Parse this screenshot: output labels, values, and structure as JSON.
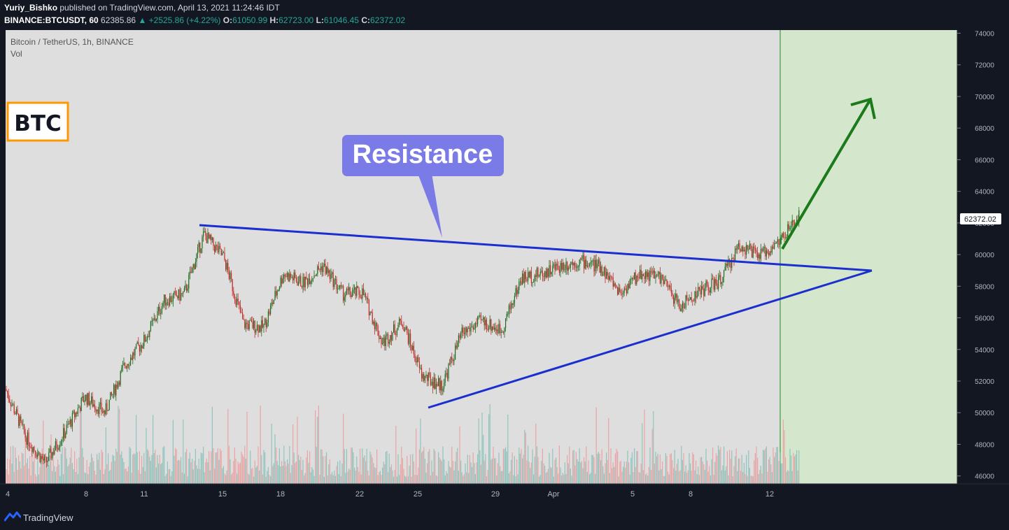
{
  "header": {
    "author": "Yuriy_Bishko",
    "published": "published on TradingView.com, April 13, 2021 11:24:46 IDT",
    "symbol": "BINANCE:BTCUSDT, 60",
    "last": "62385.86",
    "change": "▲ +2525.86 (+4.22%)",
    "o_label": "O:",
    "o": "61050.99",
    "h_label": "H:",
    "h": "62723.00",
    "l_label": "L:",
    "l": "61046.45",
    "c_label": "C:",
    "c": "62372.02"
  },
  "legend": {
    "title": "Bitcoin / TetherUS, 1h, BINANCE",
    "vol": "Vol"
  },
  "badge": {
    "label": "BTC"
  },
  "callout": {
    "label": "Resistance"
  },
  "footer": {
    "brand": "TradingView"
  },
  "colors": {
    "background": "#131722",
    "pane": "#dedede",
    "forecast_zone": "#d4e7cc",
    "trendline": "#1b2fcf",
    "arrow": "#1b7a1b",
    "callout": "#7b7be8",
    "badge_border": "#ff9800",
    "up": "#1e6b1e",
    "down": "#c62828",
    "vol_up": "#8fc4bd",
    "vol_down": "#e9a5a5"
  },
  "chart_data": {
    "type": "candlestick",
    "title": "Bitcoin / TetherUS, 1h, BINANCE",
    "ylim": [
      45500,
      74200
    ],
    "y_ticks": [
      "74000",
      "72000",
      "70000",
      "68000",
      "66000",
      "64000",
      "62000",
      "60000",
      "58000",
      "56000",
      "54000",
      "52000",
      "50000",
      "48000",
      "46000"
    ],
    "x_ticks": [
      "4",
      "8",
      "11",
      "15",
      "18",
      "22",
      "25",
      "29",
      "Apr",
      "5",
      "8",
      "12"
    ],
    "last_price_label": "62372.02",
    "last_price": 62372.02,
    "price_path": [
      {
        "t": "4",
        "price": 51500
      },
      {
        "t": "5",
        "price": 48500
      },
      {
        "t": "6",
        "price": 46800
      },
      {
        "t": "7",
        "price": 48800
      },
      {
        "t": "8",
        "price": 51000
      },
      {
        "t": "9",
        "price": 50000
      },
      {
        "t": "10",
        "price": 53000
      },
      {
        "t": "11",
        "price": 54600
      },
      {
        "t": "12",
        "price": 57100
      },
      {
        "t": "13",
        "price": 57500
      },
      {
        "t": "14",
        "price": 61300
      },
      {
        "t": "15",
        "price": 59800
      },
      {
        "t": "16",
        "price": 55600
      },
      {
        "t": "17",
        "price": 55400
      },
      {
        "t": "18",
        "price": 58800
      },
      {
        "t": "19",
        "price": 58200
      },
      {
        "t": "20",
        "price": 59300
      },
      {
        "t": "21",
        "price": 57500
      },
      {
        "t": "22",
        "price": 57600
      },
      {
        "t": "23",
        "price": 54400
      },
      {
        "t": "24",
        "price": 55800
      },
      {
        "t": "25",
        "price": 52300
      },
      {
        "t": "26",
        "price": 51700
      },
      {
        "t": "27",
        "price": 55000
      },
      {
        "t": "28",
        "price": 55800
      },
      {
        "t": "29",
        "price": 55200
      },
      {
        "t": "30",
        "price": 58500
      },
      {
        "t": "31",
        "price": 58800
      },
      {
        "t": "Apr",
        "price": 59300
      },
      {
        "t": "2",
        "price": 59600
      },
      {
        "t": "3",
        "price": 59200
      },
      {
        "t": "4",
        "price": 57600
      },
      {
        "t": "5",
        "price": 58800
      },
      {
        "t": "6",
        "price": 58600
      },
      {
        "t": "7",
        "price": 56700
      },
      {
        "t": "8",
        "price": 57700
      },
      {
        "t": "9",
        "price": 58300
      },
      {
        "t": "10",
        "price": 60600
      },
      {
        "t": "11",
        "price": 59900
      },
      {
        "t": "12",
        "price": 60800
      },
      {
        "t": "13",
        "price": 62372
      }
    ],
    "annotations": {
      "resistance_line": [
        {
          "t": "13 Mar",
          "price": 62000
        },
        {
          "t": "forecast",
          "price": 59100
        }
      ],
      "support_line": [
        {
          "t": "25 Mar",
          "price": 50500
        },
        {
          "t": "forecast",
          "price": 59100
        }
      ],
      "arrow_target": 70000
    }
  }
}
